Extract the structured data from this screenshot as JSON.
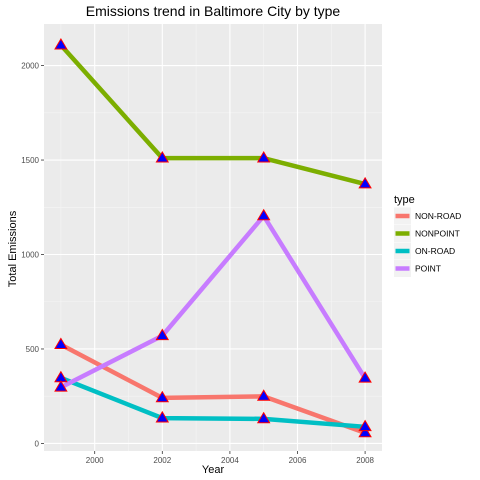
{
  "chart_data": {
    "type": "line",
    "title": "Emissions trend in Baltimore City by type",
    "xlabel": "Year",
    "ylabel": "Total Emissions",
    "x": [
      1999,
      2002,
      2005,
      2008
    ],
    "xlim": [
      1998.5,
      2008.5
    ],
    "ylim": [
      -40,
      2220
    ],
    "x_ticks": [
      2000,
      2002,
      2004,
      2006,
      2008
    ],
    "y_ticks": [
      0,
      500,
      1000,
      1500,
      2000
    ],
    "grid": true,
    "legend": {
      "title": "type",
      "position": "right"
    },
    "marker": {
      "shape": "triangle",
      "fill": "#0000ff",
      "stroke": "#ff0000"
    },
    "series": [
      {
        "name": "NON-ROAD",
        "color": "#f8766d",
        "values": [
          523,
          241,
          249,
          56
        ]
      },
      {
        "name": "NONPOINT",
        "color": "#7cae00",
        "values": [
          2108,
          1510,
          1510,
          1373
        ]
      },
      {
        "name": "ON-ROAD",
        "color": "#00bfc4",
        "values": [
          347,
          134,
          130,
          88
        ]
      },
      {
        "name": "POINT",
        "color": "#c77cff",
        "values": [
          297,
          570,
          1204,
          345
        ]
      }
    ]
  }
}
